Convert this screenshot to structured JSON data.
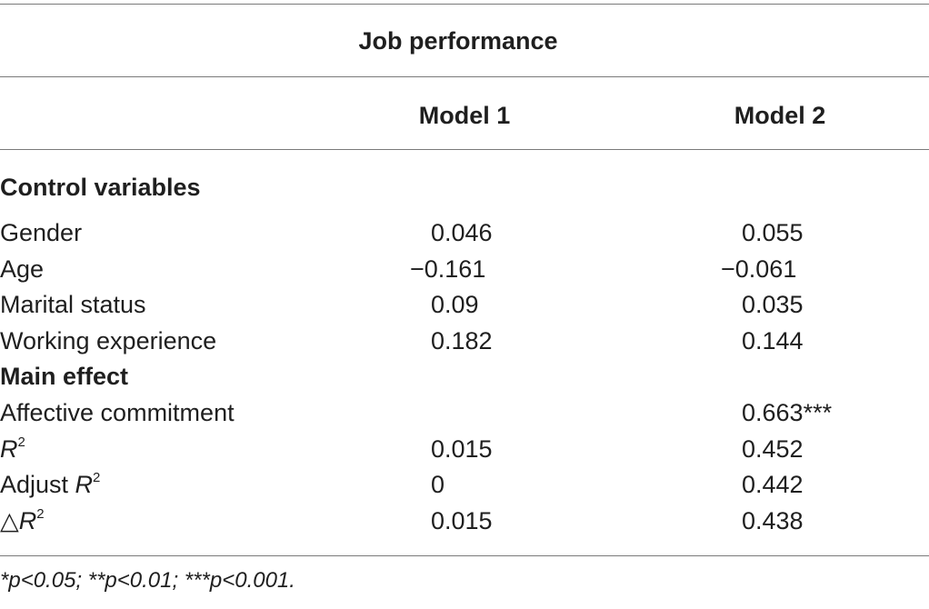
{
  "table": {
    "header_group": "Job performance",
    "columns": [
      "Model 1",
      "Model 2"
    ],
    "sections": [
      {
        "label": "Control variables",
        "rows": [
          {
            "label": "Gender",
            "m1": "0.046",
            "m2": "0.055"
          },
          {
            "label": "Age",
            "m1": "−0.161",
            "m2": "−0.061"
          },
          {
            "label": "Marital status",
            "m1": "0.09",
            "m2": "0.035"
          },
          {
            "label": "Working experience",
            "m1": "0.182",
            "m2": "0.144"
          }
        ]
      },
      {
        "label": "Main effect",
        "rows": [
          {
            "label": "Affective commitment",
            "m1": "",
            "m2": "0.663***"
          }
        ]
      }
    ],
    "stats_rows": [
      {
        "prefix": "",
        "symbol": "R",
        "sup": "2",
        "m1": "0.015",
        "m2": "0.452"
      },
      {
        "prefix": "Adjust ",
        "symbol": "R",
        "sup": "2",
        "m1": "0",
        "m2": "0.442"
      },
      {
        "prefix": "△",
        "symbol": "R",
        "sup": "2",
        "m1": "0.015",
        "m2": "0.438"
      }
    ],
    "footnote": "*p<0.05; **p<0.01; ***p<0.001."
  }
}
